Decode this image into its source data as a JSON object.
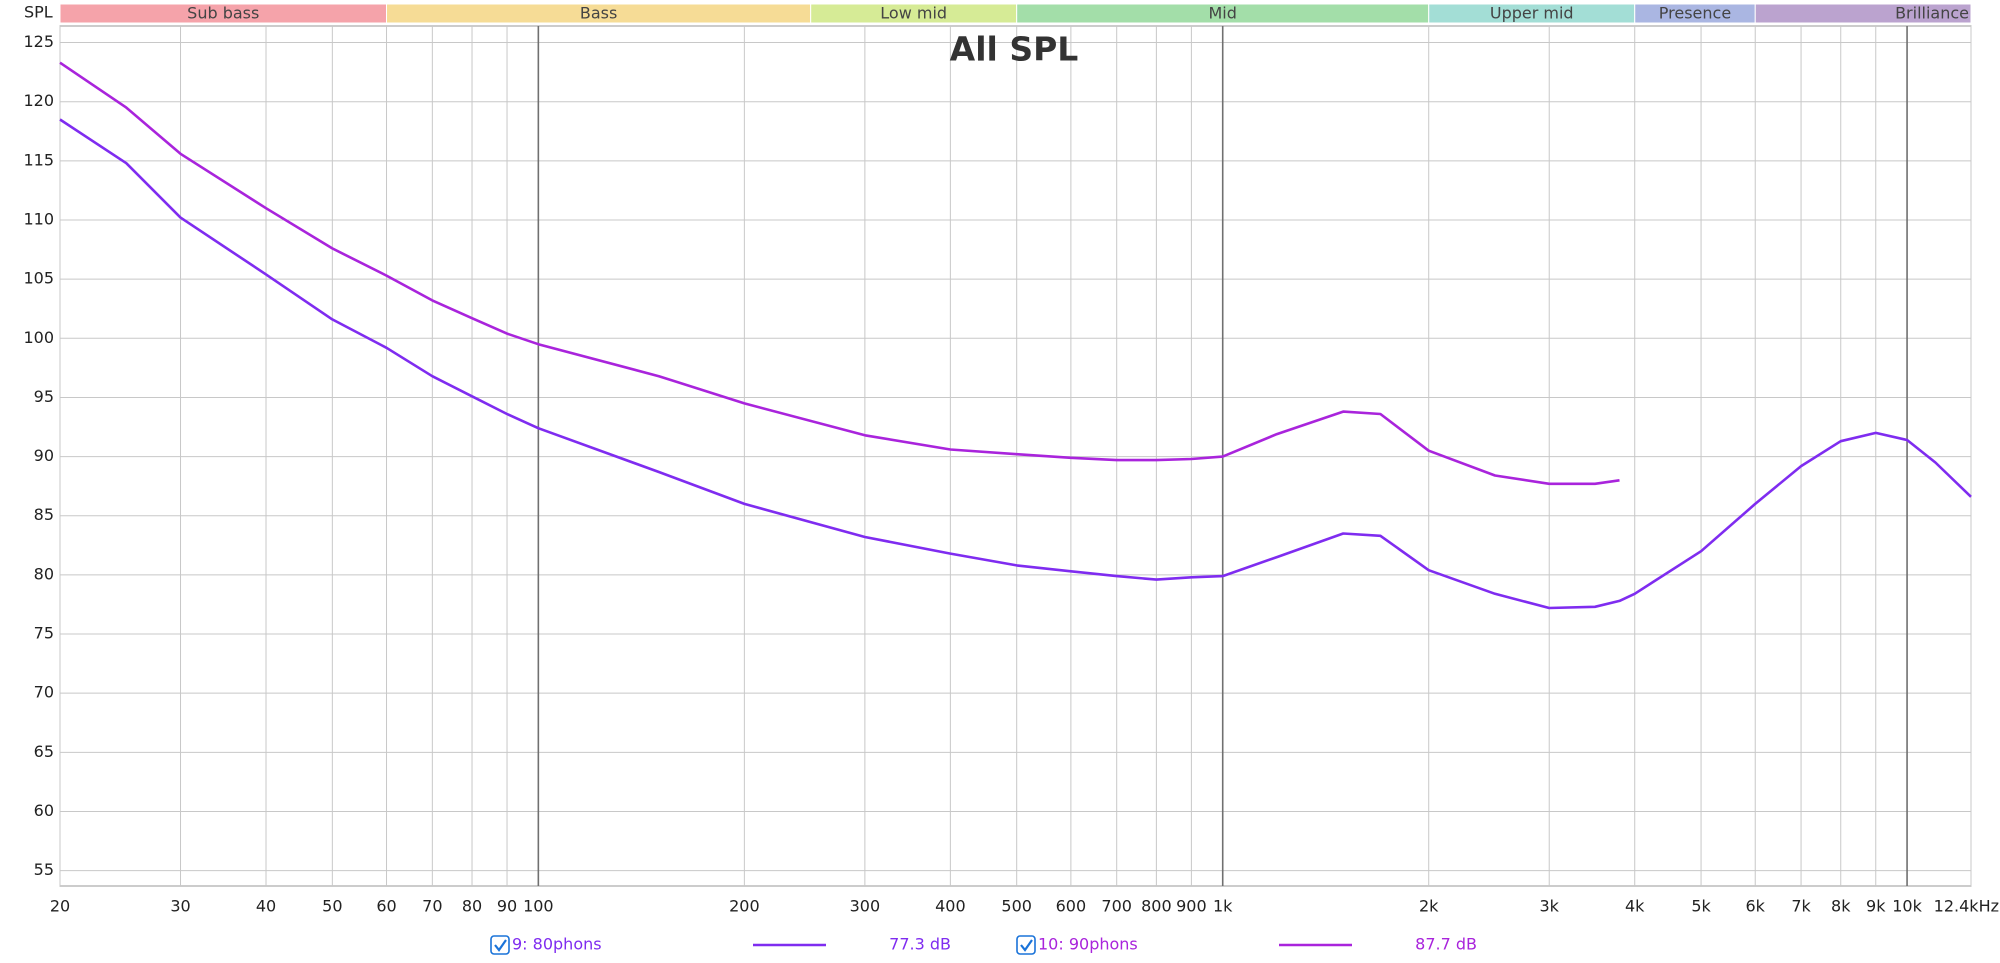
{
  "chart_data": {
    "type": "line",
    "title": "All SPL",
    "y_label": "SPL",
    "x_log": true,
    "grid": true,
    "xlim": [
      20,
      12400
    ],
    "ylim": [
      53.7,
      126.4
    ],
    "xticks": [
      20,
      30,
      40,
      50,
      60,
      70,
      80,
      90,
      100,
      200,
      300,
      400,
      500,
      600,
      700,
      800,
      900,
      {
        "value": 1000,
        "label": "1k"
      },
      {
        "value": 2000,
        "label": "2k"
      },
      {
        "value": 3000,
        "label": "3k"
      },
      {
        "value": 4000,
        "label": "4k"
      },
      {
        "value": 5000,
        "label": "5k"
      },
      {
        "value": 6000,
        "label": "6k"
      },
      {
        "value": 7000,
        "label": "7k"
      },
      {
        "value": 8000,
        "label": "8k"
      },
      {
        "value": 9000,
        "label": "9k"
      },
      {
        "value": 10000,
        "label": "10k"
      },
      {
        "value": 12400,
        "label": "12.4kHz"
      }
    ],
    "yticks": [
      55,
      60,
      65,
      70,
      75,
      80,
      85,
      90,
      95,
      100,
      105,
      110,
      115,
      120,
      125
    ],
    "bands": [
      {
        "name": "Sub bass",
        "from": 20,
        "to": 60,
        "color": "#f5a3aa"
      },
      {
        "name": "Bass",
        "from": 60,
        "to": 250,
        "color": "#f6dc96"
      },
      {
        "name": "Low mid",
        "from": 250,
        "to": 500,
        "color": "#d6eb96"
      },
      {
        "name": "Mid",
        "from": 500,
        "to": 2000,
        "color": "#a3dea9"
      },
      {
        "name": "Upper mid",
        "from": 2000,
        "to": 4000,
        "color": "#a3ded6"
      },
      {
        "name": "Presence",
        "from": 4000,
        "to": 6000,
        "color": "#aab6e2"
      },
      {
        "name": "Brilliance",
        "from": 6000,
        "to": 12400,
        "color": "#bba3cf"
      }
    ],
    "x": [
      20,
      25,
      30,
      40,
      50,
      60,
      70,
      80,
      90,
      100,
      150,
      200,
      300,
      400,
      500,
      600,
      700,
      800,
      900,
      1000,
      1200,
      1500,
      1700,
      2000,
      2500,
      3000,
      3500,
      3800,
      4000,
      5000,
      6000,
      7000,
      8000,
      9000,
      10000,
      11000,
      12400
    ],
    "series": [
      {
        "name": "9: 80phons",
        "legend_value": "77.3 dB",
        "color": "#7f2cf0",
        "values": [
          118.5,
          114.8,
          110.2,
          105.4,
          101.6,
          99.2,
          96.8,
          95.1,
          93.6,
          92.4,
          88.7,
          86.0,
          83.2,
          81.8,
          80.8,
          80.3,
          79.9,
          79.6,
          79.8,
          79.9,
          81.5,
          83.5,
          83.3,
          80.4,
          78.4,
          77.2,
          77.3,
          77.8,
          78.4,
          82.0,
          86.0,
          89.2,
          91.3,
          92.0,
          91.4,
          89.5,
          86.6
        ]
      },
      {
        "name": "10: 90phons",
        "legend_value": "87.7 dB",
        "color": "#a924dc",
        "values": [
          123.3,
          119.5,
          115.6,
          111.0,
          107.6,
          105.3,
          103.2,
          101.7,
          100.4,
          99.5,
          96.8,
          94.5,
          91.8,
          90.6,
          90.2,
          89.9,
          89.7,
          89.7,
          89.8,
          90.0,
          91.9,
          93.8,
          93.6,
          90.5,
          88.4,
          87.7,
          87.7,
          88.0,
          null,
          null,
          null,
          null,
          null,
          null,
          null,
          null,
          null
        ]
      }
    ]
  }
}
